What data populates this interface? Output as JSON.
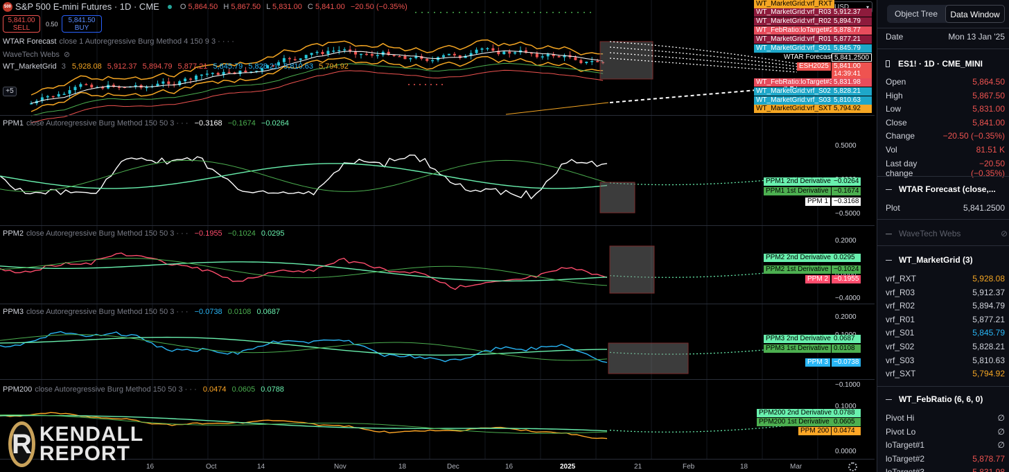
{
  "chart_header": {
    "title": "S&P 500 E-mini Futures · 1D · CME",
    "logo_text": "500",
    "ohlc": {
      "o_label": "O",
      "o": "5,864.50",
      "h_label": "H",
      "h": "5,867.50",
      "l_label": "L",
      "l": "5,831.00",
      "c_label": "C",
      "c": "5,841.00",
      "chg": "−20.50 (−0.35%)"
    }
  },
  "trade": {
    "sell_price": "5,841.00",
    "sell_label": "SELL",
    "spread": "0.50",
    "buy_price": "5,841.50",
    "buy_label": "BUY"
  },
  "indicators_main": [
    {
      "name": "WTAR Forecast",
      "desc": "close 1 Autoregressive Burg Method 4 150 9 3 · · · ·"
    },
    {
      "name": "WaveTech Webs",
      "desc": ""
    },
    {
      "name": "WT_MarketGrid",
      "desc": "3",
      "values": [
        "5,928.08",
        "5,912.37",
        "5,894.79",
        "5,877.21",
        "5,845.79",
        "5,828.21",
        "5,810.63",
        "5,794.92"
      ]
    }
  ],
  "plus_label": "+5",
  "currency": "USD",
  "price_labels": [
    {
      "text": "WT_MarketGrid:vrf_RXT",
      "value": "",
      "color": "#f5a623"
    },
    {
      "text": "WT_MarketGrid:vrf_R03",
      "value": "5,912.37",
      "color": "#8e1b3c"
    },
    {
      "text": "WT_MarketGrid:vrf_R02",
      "value": "5,894.79",
      "color": "#8e1b3c"
    },
    {
      "text": "WT_FebRatio:loTarget#2",
      "value": "5,878.77",
      "color": "#e74c5c"
    },
    {
      "text": "WT_MarketGrid:vrf_R01",
      "value": "5,877.21",
      "color": "#8e1b3c"
    },
    {
      "text": "WT_MarketGrid:vrf_S01",
      "value": "5,845.79",
      "color": "#1ea7c9"
    },
    {
      "text": "WTAR Forecast",
      "value": "5,841.2500",
      "color": "#ffffff"
    },
    {
      "text": "ESH2025",
      "value": "5,841.00",
      "color": "#ef5350"
    },
    {
      "text": "",
      "value": "14:39:41",
      "color": "#ef5350"
    },
    {
      "text": "WT_FebRatio:loTarget#3",
      "value": "5,831.98",
      "color": "#e74c5c"
    },
    {
      "text": "WT_MarketGrid:vrf_S02",
      "value": "5,828.21",
      "color": "#1ea7c9"
    },
    {
      "text": "WT_MarketGrid:vrf_S03",
      "value": "5,810.63",
      "color": "#1ea7c9"
    },
    {
      "text": "WT_MarketGrid:vrf_SXT",
      "value": "5,794.92",
      "color": "#f5a623"
    }
  ],
  "panes": [
    {
      "name": "PPM1",
      "desc": "close Autoregressive Burg Method 150 50 3 · · ·",
      "vals": [
        "−0.3168",
        "−0.1674",
        "−0.0264"
      ],
      "colors": [
        "#ffffff",
        "#4caf50",
        "#69f0ae"
      ],
      "ticks": [
        "0.5000",
        "0.0000",
        "−0.5000"
      ],
      "labels": [
        {
          "text": "PPM1 2nd Derivative",
          "value": "−0.0264",
          "color": "#69f0ae"
        },
        {
          "text": "PPM1 1st Derivative",
          "value": "−0.1674",
          "color": "#4caf50"
        },
        {
          "text": "PPM 1",
          "value": "−0.3168",
          "color": "#ffffff"
        }
      ]
    },
    {
      "name": "PPM2",
      "desc": "close Autoregressive Burg Method 150 50 3 · · ·",
      "vals": [
        "−0.1955",
        "−0.1024",
        "0.0295"
      ],
      "colors": [
        "#ff4d6d",
        "#4caf50",
        "#69f0ae"
      ],
      "ticks": [
        "0.2000",
        "0.0000",
        "−0.4000"
      ],
      "labels": [
        {
          "text": "PPM2 2nd Derivative",
          "value": "0.0295",
          "color": "#69f0ae"
        },
        {
          "text": "PPM2 1st Derivative",
          "value": "−0.1024",
          "color": "#4caf50"
        },
        {
          "text": "PPM 2",
          "value": "−0.1955",
          "color": "#ff4d6d"
        }
      ]
    },
    {
      "name": "PPM3",
      "desc": "close Autoregressive Burg Method 150 50 3 · · ·",
      "vals": [
        "−0.0738",
        "0.0108",
        "0.0687"
      ],
      "colors": [
        "#29b6f6",
        "#4caf50",
        "#69f0ae"
      ],
      "ticks": [
        "0.2000",
        "0.1000",
        "−0.1000"
      ],
      "labels": [
        {
          "text": "PPM3 2nd Derivative",
          "value": "0.0687",
          "color": "#69f0ae"
        },
        {
          "text": "PPM3 1st Derivative",
          "value": "0.0108",
          "color": "#4caf50"
        },
        {
          "text": "PPM 3",
          "value": "−0.0738",
          "color": "#29b6f6"
        }
      ]
    },
    {
      "name": "PPM200",
      "desc": "close Autoregressive Burg Method 150 50 3 · · ·",
      "vals": [
        "0.0474",
        "0.0605",
        "0.0788"
      ],
      "colors": [
        "#ffa726",
        "#4caf50",
        "#69f0ae"
      ],
      "ticks": [
        "0.1000",
        "0.0000"
      ],
      "labels": [
        {
          "text": "PPM200 2nd Derivative",
          "value": "0.0788",
          "color": "#69f0ae"
        },
        {
          "text": "PPM200 1st Derivative",
          "value": "0.0605",
          "color": "#4caf50"
        },
        {
          "text": "PPM 200",
          "value": "0.0474",
          "color": "#ffa726"
        }
      ]
    }
  ],
  "x_axis": [
    "16",
    "Oct",
    "14",
    "Nov",
    "18",
    "Dec",
    "16",
    "2025",
    "21",
    "Feb",
    "18",
    "Mar"
  ],
  "side_panel": {
    "tabs": [
      "Object Tree",
      "Data Window"
    ],
    "date_label": "Date",
    "date_value": "Mon 13 Jan '25",
    "symbol": "ES1! · 1D · CME_MINI",
    "rows": [
      {
        "label": "Open",
        "value": "5,864.50",
        "color": "#ef5350"
      },
      {
        "label": "High",
        "value": "5,867.50",
        "color": "#ef5350"
      },
      {
        "label": "Low",
        "value": "5,831.00",
        "color": "#ef5350"
      },
      {
        "label": "Close",
        "value": "5,841.00",
        "color": "#ef5350"
      },
      {
        "label": "Change",
        "value": "−20.50 (−0.35%)",
        "color": "#ef5350"
      },
      {
        "label": "Vol",
        "value": "81.51 K",
        "color": "#ef5350"
      },
      {
        "label": "Last day change",
        "value": "−20.50 (−0.35%)",
        "color": "#ef5350"
      }
    ],
    "wtar_head": "WTAR Forecast (close,...",
    "plot_label": "Plot",
    "plot_value": "5,841.2500",
    "webs_head": "WaveTech Webs",
    "grid_head": "WT_MarketGrid (3)",
    "grid_rows": [
      {
        "label": "vrf_RXT",
        "value": "5,928.08",
        "color": "#f5a623"
      },
      {
        "label": "vrf_R03",
        "value": "5,912.37",
        "color": "#d1d4dc"
      },
      {
        "label": "vrf_R02",
        "value": "5,894.79",
        "color": "#d1d4dc"
      },
      {
        "label": "vrf_R01",
        "value": "5,877.21",
        "color": "#d1d4dc"
      },
      {
        "label": "vrf_S01",
        "value": "5,845.79",
        "color": "#29b6f6"
      },
      {
        "label": "vrf_S02",
        "value": "5,828.21",
        "color": "#d1d4dc"
      },
      {
        "label": "vrf_S03",
        "value": "5,810.63",
        "color": "#d1d4dc"
      },
      {
        "label": "vrf_SXT",
        "value": "5,794.92",
        "color": "#f5a623"
      }
    ],
    "feb_head": "WT_FebRatio (6, 6, 0)",
    "feb_rows": [
      {
        "label": "Pivot Hi",
        "value": "∅",
        "color": "#d1d4dc"
      },
      {
        "label": "Pivot Lo",
        "value": "∅",
        "color": "#d1d4dc"
      },
      {
        "label": "loTarget#1",
        "value": "∅",
        "color": "#d1d4dc"
      },
      {
        "label": "loTarget#2",
        "value": "5,878.77",
        "color": "#ef5350"
      },
      {
        "label": "loTarget#3",
        "value": "5,831.98",
        "color": "#ef5350"
      }
    ]
  },
  "watermark": {
    "line1": "KENDALL",
    "line2": "REPORT",
    "mark": "R"
  }
}
